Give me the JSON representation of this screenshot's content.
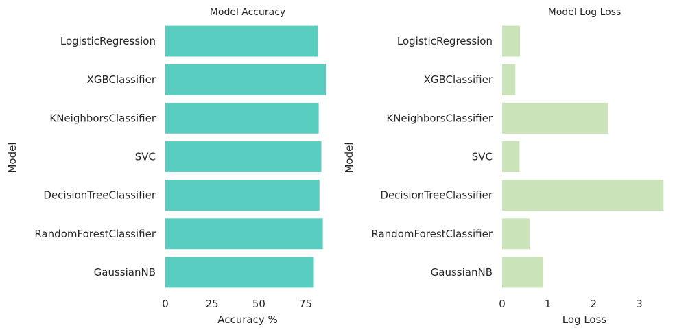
{
  "chart_data": [
    {
      "type": "bar",
      "orientation": "horizontal",
      "title": "Model Accuracy",
      "xlabel": "Accuracy %",
      "ylabel": "Model",
      "categories": [
        "LogisticRegression",
        "XGBClassifier",
        "KNeighborsClassifier",
        "SVC",
        "DecisionTreeClassifier",
        "RandomForestClassifier",
        "GaussianNB"
      ],
      "values": [
        81.6,
        85.8,
        82.0,
        83.4,
        82.4,
        84.2,
        79.4
      ],
      "xlim": [
        0,
        88
      ],
      "xticks": [
        0,
        25,
        50,
        75
      ],
      "color": "#58CDC0",
      "grid": false
    },
    {
      "type": "bar",
      "orientation": "horizontal",
      "title": "Model Log Loss",
      "xlabel": "Log Loss",
      "ylabel": "Model",
      "categories": [
        "LogisticRegression",
        "XGBClassifier",
        "KNeighborsClassifier",
        "SVC",
        "DecisionTreeClassifier",
        "RandomForestClassifier",
        "GaussianNB"
      ],
      "values": [
        0.39,
        0.29,
        2.32,
        0.38,
        3.53,
        0.6,
        0.9
      ],
      "xlim": [
        0,
        3.6
      ],
      "xticks": [
        0,
        1,
        2,
        3
      ],
      "color": "#CAE3B9",
      "grid": false
    }
  ]
}
